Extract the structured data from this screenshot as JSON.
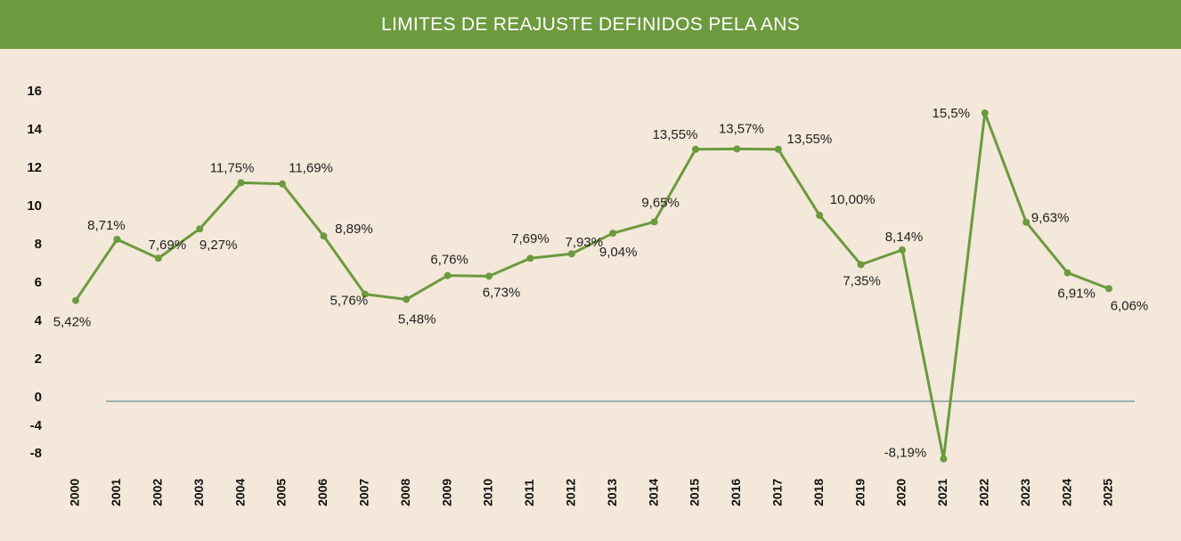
{
  "header": {
    "title": "LIMITES DE REAJUSTE DEFINIDOS PELA ANS"
  },
  "colors": {
    "header_bg": "#6c9a3e",
    "background": "#f3e8da",
    "line": "#6c9a3e",
    "baseline": "#6b8e98"
  },
  "chart_data": {
    "type": "line",
    "title": "LIMITES DE REAJUSTE DEFINIDOS PELA ANS",
    "xlabel": "",
    "ylabel": "",
    "y_ticks": [
      "16",
      "14",
      "12",
      "10",
      "8",
      "6",
      "4",
      "2",
      "0",
      "-4",
      "-8"
    ],
    "categories": [
      "2000",
      "2001",
      "2002",
      "2003",
      "2004",
      "2005",
      "2006",
      "2007",
      "2008",
      "2009",
      "2010",
      "2011",
      "2012",
      "2013",
      "2014",
      "2015",
      "2016",
      "2017",
      "2018",
      "2019",
      "2020",
      "2021",
      "2022",
      "2023",
      "2024",
      "2025"
    ],
    "series": [
      {
        "values": [
          5.42,
          8.71,
          7.69,
          9.27,
          11.75,
          11.69,
          8.89,
          5.76,
          5.48,
          6.76,
          6.73,
          7.69,
          7.93,
          9.04,
          9.65,
          13.55,
          13.57,
          13.55,
          10.0,
          7.35,
          8.14,
          -8.19,
          15.5,
          9.63,
          6.91,
          6.06
        ],
        "labels": [
          "5,42%",
          "8,71%",
          "7,69%",
          "9,27%",
          "11,75%",
          "11,69%",
          "8,89%",
          "5,76%",
          "5,48%",
          "6,76%",
          "6,73%",
          "7,69%",
          "7,93%",
          "9,04%",
          "9,65%",
          "13,55%",
          "13,57%",
          "13,55%",
          "10,00%",
          "7,35%",
          "8,14%",
          "-8,19%",
          "15,5%",
          "9,63%",
          "6,91%",
          "6,06%"
        ]
      }
    ],
    "grid": false,
    "legend": "none"
  }
}
